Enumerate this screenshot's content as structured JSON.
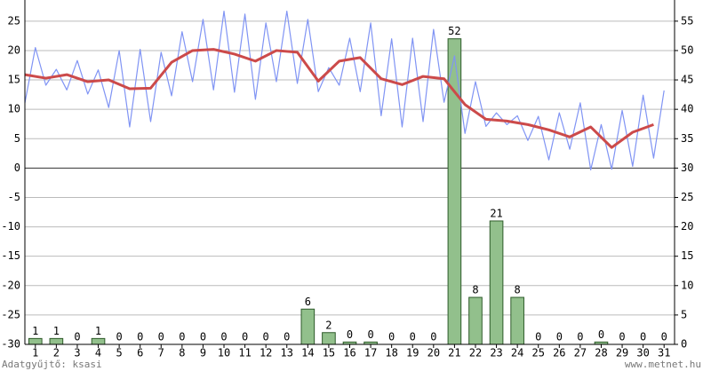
{
  "chart_data": {
    "type": "combo",
    "footer_left": "Adatgyűjtő: ksasi",
    "footer_right": "www.metnet.hu",
    "xlim": [
      0.5,
      31.5
    ],
    "xticks": [
      1,
      2,
      3,
      4,
      5,
      6,
      7,
      8,
      9,
      10,
      11,
      12,
      13,
      14,
      15,
      16,
      17,
      18,
      19,
      20,
      21,
      22,
      23,
      24,
      25,
      26,
      27,
      28,
      29,
      30,
      31
    ],
    "ylim": [
      -30,
      28.6
    ],
    "yticks": [
      -30,
      -25,
      -20,
      -15,
      -10,
      -5,
      0,
      5,
      10,
      15,
      20,
      25
    ],
    "y2lim": [
      0,
      58.6
    ],
    "y2ticks": [
      0,
      5,
      10,
      15,
      20,
      25,
      30,
      35,
      40,
      45,
      50,
      55
    ],
    "grid": true,
    "series": [
      {
        "type": "bar",
        "axis": "y2",
        "color": "#92c08c",
        "edge": "#2e5b2a",
        "x": [
          1,
          2,
          3,
          4,
          5,
          6,
          7,
          8,
          9,
          10,
          11,
          12,
          13,
          14,
          15,
          16,
          17,
          18,
          19,
          20,
          21,
          22,
          23,
          24,
          25,
          26,
          27,
          28,
          29,
          30,
          31
        ],
        "values": [
          1,
          1,
          0,
          1,
          0,
          0,
          0,
          0,
          0,
          0,
          0,
          0,
          0,
          6,
          2,
          0.4,
          0.4,
          0,
          0,
          0,
          52,
          8,
          21,
          8,
          0,
          0,
          0,
          0.4,
          0,
          0,
          0
        ],
        "value_labels": [
          "1",
          "1",
          "0",
          "1",
          "0",
          "0",
          "0",
          "0",
          "0",
          "0",
          "0",
          "0",
          "0",
          "6",
          "2",
          "0",
          "0",
          "0",
          "0",
          "0",
          "52",
          "8",
          "21",
          "8",
          "0",
          "0",
          "0",
          "0",
          "0",
          "0",
          "0"
        ]
      },
      {
        "type": "line",
        "color": "#8094f4",
        "width": 1.2,
        "x": [
          0.5,
          1,
          1.5,
          2,
          2.5,
          3,
          3.5,
          4,
          4.5,
          5,
          5.5,
          6,
          6.5,
          7,
          7.5,
          8,
          8.5,
          9,
          9.5,
          10,
          10.5,
          11,
          11.5,
          12,
          12.5,
          13,
          13.5,
          14,
          14.5,
          15,
          15.5,
          16,
          16.5,
          17,
          17.5,
          18,
          18.5,
          19,
          19.5,
          20,
          20.5,
          21,
          21.5,
          22,
          22.5,
          23,
          23.5,
          24,
          24.5,
          25,
          25.5,
          26,
          26.5,
          27,
          27.5,
          28,
          28.5,
          29,
          29.5,
          30,
          30.5,
          31
        ],
        "values": [
          11.1,
          20.5,
          14.1,
          16.8,
          13.3,
          18.3,
          12.6,
          16.7,
          10.3,
          20,
          7,
          20.2,
          7.9,
          19.7,
          12.3,
          23.2,
          14.7,
          25.3,
          13.3,
          26.7,
          12.9,
          26.2,
          11.7,
          24.7,
          14.7,
          26.7,
          14.4,
          25.3,
          13,
          17.1,
          14.1,
          22.1,
          13,
          24.7,
          8.9,
          22,
          7,
          22.1,
          7.9,
          23.6,
          11.2,
          19.1,
          5.9,
          14.7,
          7.1,
          9.4,
          7.4,
          8.9,
          4.7,
          8.8,
          1.4,
          9.4,
          3.2,
          11.1,
          -0.3,
          7.4,
          -0.2,
          9.8,
          0.3,
          12.4,
          1.7,
          13.2
        ]
      },
      {
        "type": "line",
        "color": "#cc4a4a",
        "width": 3,
        "x": [
          0.5,
          1.5,
          2.5,
          3.5,
          4.5,
          5.5,
          6.5,
          7.5,
          8.5,
          9.5,
          10.5,
          11.5,
          12.5,
          13.5,
          14.5,
          15.5,
          16.5,
          17.5,
          18.5,
          19.5,
          20.5,
          21.5,
          22.5,
          23.5,
          24.5,
          25.5,
          26.5,
          27.5,
          28.5,
          29.5,
          30.5
        ],
        "values": [
          15.9,
          15.3,
          15.9,
          14.7,
          15,
          13.5,
          13.6,
          18,
          20,
          20.2,
          19.4,
          18.2,
          20,
          19.7,
          14.8,
          18.2,
          18.8,
          15.2,
          14.2,
          15.6,
          15.2,
          10.8,
          8.3,
          8,
          7.4,
          6.5,
          5.3,
          7,
          3.5,
          6.1,
          7.4
        ]
      }
    ]
  }
}
